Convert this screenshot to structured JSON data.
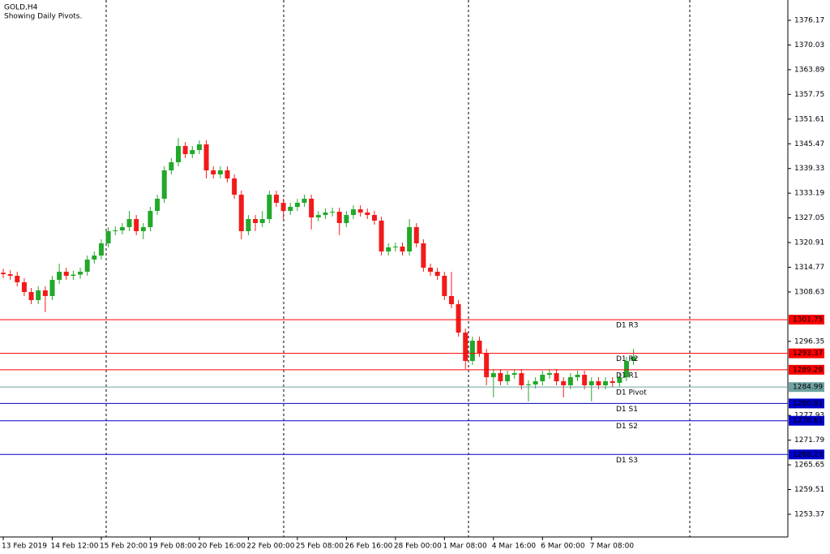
{
  "chart_data": {
    "type": "candlestick",
    "title": "GOLD,H4",
    "subtitle": "Showing Daily Pivots.",
    "categories": [
      "13 Feb 2019",
      null,
      null,
      null,
      null,
      null,
      null,
      "14 Feb 12:00",
      null,
      null,
      null,
      null,
      null,
      null,
      "15 Feb 20:00",
      null,
      null,
      null,
      null,
      null,
      null,
      "19 Feb 08:00",
      null,
      null,
      null,
      null,
      null,
      null,
      "20 Feb 16:00",
      null,
      null,
      null,
      null,
      null,
      null,
      "22 Feb 00:00",
      null,
      null,
      null,
      null,
      null,
      null,
      "25 Feb 08:00",
      null,
      null,
      null,
      null,
      null,
      null,
      "26 Feb 16:00",
      null,
      null,
      null,
      null,
      null,
      null,
      "28 Feb 00:00",
      null,
      null,
      null,
      null,
      null,
      null,
      "1 Mar 08:00",
      null,
      null,
      null,
      null,
      null,
      null,
      "4 Mar 16:00",
      null,
      null,
      null,
      null,
      null,
      null,
      "6 Mar 00:00",
      null,
      null,
      null,
      null,
      null,
      null,
      "7 Mar 08:00",
      null,
      null,
      null,
      null,
      null,
      null
    ],
    "open": [
      1313.4,
      1313.05,
      1312.65,
      1311.04,
      1308.62,
      1306.6,
      1309.02,
      1307.61,
      1311.64,
      1313.66,
      1312.65,
      1312.95,
      1313.66,
      1316.68,
      1317.69,
      1320.72,
      1323.74,
      1323.94,
      1324.75,
      1326.76,
      1323.74,
      1324.75,
      1328.78,
      1331.81,
      1338.86,
      1340.88,
      1344.91,
      1342.9,
      1343.91,
      1345.32,
      1338.86,
      1337.86,
      1338.86,
      1336.85,
      1332.81,
      1323.74,
      1326.76,
      1325.76,
      1326.76,
      1332.81,
      1330.8,
      1328.78,
      1329.79,
      1330.8,
      1331.81,
      1327.17,
      1327.77,
      1328.38,
      1328.58,
      1325.76,
      1327.77,
      1329.18,
      1328.38,
      1327.77,
      1326.36,
      1318.7,
      1319.71,
      1319.91,
      1318.7,
      1324.75,
      1320.72,
      1314.67,
      1313.66,
      1312.65,
      1307.61,
      1305.59,
      1298.53,
      1291.48,
      1296.52,
      1293.49,
      1287.44,
      1288.45,
      1286.43,
      1288.05,
      1288.45,
      1285.43,
      1285.63,
      1286.43,
      1288.05,
      1288.45,
      1286.43,
      1285.43,
      1287.44,
      1288.05,
      1285.43,
      1286.43,
      1285.43,
      1286.43,
      1286.03,
      1287.44,
      1291.48
    ],
    "high": [
      1314.4,
      1314.05,
      1313.65,
      1312.04,
      1309.62,
      1310.02,
      1310.02,
      1312.64,
      1315.66,
      1314.66,
      1313.95,
      1314.66,
      1317.68,
      1318.69,
      1321.72,
      1324.74,
      1324.94,
      1325.75,
      1328.76,
      1327.76,
      1325.75,
      1329.78,
      1332.81,
      1339.86,
      1341.88,
      1346.91,
      1345.91,
      1344.91,
      1346.32,
      1346.32,
      1339.86,
      1339.86,
      1339.86,
      1337.85,
      1333.81,
      1327.76,
      1327.76,
      1328.76,
      1333.81,
      1333.81,
      1331.8,
      1330.79,
      1331.8,
      1332.81,
      1332.81,
      1328.77,
      1329.38,
      1329.58,
      1329.58,
      1328.77,
      1330.18,
      1330.18,
      1329.38,
      1328.77,
      1327.36,
      1320.71,
      1320.91,
      1320.91,
      1326.75,
      1325.75,
      1321.72,
      1315.67,
      1314.66,
      1313.65,
      1313.61,
      1306.59,
      1299.53,
      1297.52,
      1297.52,
      1294.49,
      1289.45,
      1289.45,
      1289.05,
      1289.45,
      1289.45,
      1286.63,
      1287.43,
      1289.05,
      1289.45,
      1289.45,
      1287.43,
      1288.44,
      1289.05,
      1289.05,
      1287.43,
      1287.43,
      1287.43,
      1287.43,
      1288.44,
      1292.48,
      1294.48
    ],
    "low": [
      1312.05,
      1311.65,
      1310.04,
      1307.62,
      1305.6,
      1305.6,
      1303.61,
      1306.61,
      1310.64,
      1311.65,
      1311.65,
      1311.95,
      1312.66,
      1315.68,
      1316.69,
      1319.72,
      1322.74,
      1322.94,
      1323.75,
      1322.74,
      1321.74,
      1323.75,
      1327.78,
      1330.81,
      1337.86,
      1339.88,
      1341.9,
      1341.9,
      1342.91,
      1336.86,
      1336.86,
      1336.86,
      1335.85,
      1331.81,
      1321.74,
      1322.74,
      1323.76,
      1324.76,
      1325.76,
      1329.8,
      1326.78,
      1327.78,
      1328.79,
      1329.8,
      1324.17,
      1326.17,
      1326.77,
      1327.38,
      1322.76,
      1324.76,
      1326.77,
      1327.38,
      1326.77,
      1325.36,
      1317.7,
      1317.7,
      1318.71,
      1317.7,
      1317.7,
      1319.72,
      1313.67,
      1312.66,
      1311.65,
      1306.61,
      1304.59,
      1297.53,
      1289.48,
      1290.48,
      1292.49,
      1285.44,
      1282.44,
      1285.43,
      1285.43,
      1287.05,
      1284.43,
      1281.43,
      1284.63,
      1285.43,
      1287.05,
      1285.43,
      1282.43,
      1284.43,
      1286.44,
      1284.43,
      1281.43,
      1284.43,
      1284.43,
      1285.03,
      1285.03,
      1286.44,
      1290.48
    ],
    "close": [
      1313.05,
      1312.65,
      1311.04,
      1308.62,
      1306.6,
      1309.02,
      1307.61,
      1311.64,
      1313.66,
      1312.65,
      1312.95,
      1313.66,
      1316.68,
      1317.69,
      1320.72,
      1323.74,
      1323.94,
      1324.75,
      1326.76,
      1323.74,
      1324.75,
      1328.78,
      1331.81,
      1338.86,
      1340.88,
      1344.91,
      1342.9,
      1343.91,
      1345.32,
      1338.86,
      1337.86,
      1338.86,
      1336.85,
      1332.81,
      1323.74,
      1326.76,
      1325.76,
      1326.76,
      1332.81,
      1330.8,
      1328.78,
      1329.79,
      1330.8,
      1331.81,
      1327.17,
      1327.77,
      1328.38,
      1328.58,
      1325.76,
      1327.77,
      1329.18,
      1328.38,
      1327.77,
      1326.36,
      1318.7,
      1319.71,
      1319.91,
      1318.7,
      1324.75,
      1320.72,
      1314.67,
      1313.66,
      1312.65,
      1307.61,
      1305.59,
      1298.53,
      1291.48,
      1296.52,
      1293.49,
      1287.44,
      1288.45,
      1286.43,
      1288.05,
      1288.45,
      1285.43,
      1285.63,
      1286.43,
      1288.05,
      1288.45,
      1286.43,
      1285.43,
      1287.44,
      1288.05,
      1285.43,
      1286.43,
      1285.43,
      1286.43,
      1286.03,
      1287.44,
      1291.48,
      1292.48
    ],
    "up_color": "#22a82a",
    "down_color": "#f21a1a",
    "ylim": [
      1247.72,
      1380.61
    ],
    "yticks": [
      1253.37,
      1259.51,
      1265.65,
      1271.79,
      1277.93,
      1296.35,
      1308.63,
      1314.77,
      1320.91,
      1327.05,
      1333.19,
      1339.33,
      1345.47,
      1351.61,
      1357.75,
      1363.89,
      1370.03,
      1376.17
    ],
    "levels": [
      {
        "name": "D1 R3",
        "value": 1301.75,
        "color": "#ff0000"
      },
      {
        "name": "D1 R2",
        "value": 1293.37,
        "color": "#ff0000"
      },
      {
        "name": "D1 R1",
        "value": 1289.29,
        "color": "#ff0000"
      },
      {
        "name": "D1 Pivot",
        "value": 1284.99,
        "color": "#6fa3a3"
      },
      {
        "name": "D1 S1",
        "value": 1280.91,
        "color": "#0000cd"
      },
      {
        "name": "D1 S2",
        "value": 1276.61,
        "color": "#0000cd"
      },
      {
        "name": "D1 S3",
        "value": 1268.23,
        "color": "#0000cd"
      }
    ]
  }
}
